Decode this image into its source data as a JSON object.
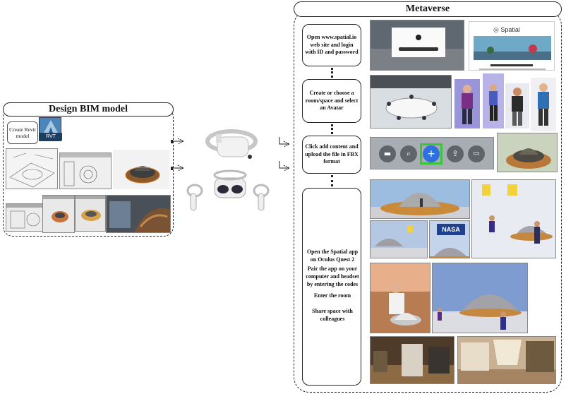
{
  "left_panel": {
    "title": "Design BIM model",
    "create_label": "Create Revit model",
    "file_badge": "RVT"
  },
  "right_panel": {
    "title": "Metaverse",
    "steps": [
      "Open www.spatial.io web site and login with ID and password",
      "Create or choose a room/space and select an Avatar",
      "Click add content and upload the file in FBX format"
    ],
    "final_step_paragraphs": [
      "Open the Spatial app on Oculus Quest 2",
      "Pair the app on your computer and headset by entering the codes",
      "Enter the room",
      "Share space with colleagues"
    ],
    "spatial_logo": "Spatial",
    "nasa_label": "NASA"
  },
  "colors": {
    "line": "#222222",
    "highlight": "#39c43a",
    "plus_button": "#2f6fe0"
  },
  "icons": [
    "folder-icon",
    "search-icon",
    "plus-icon",
    "upload-icon",
    "screen-icon"
  ]
}
